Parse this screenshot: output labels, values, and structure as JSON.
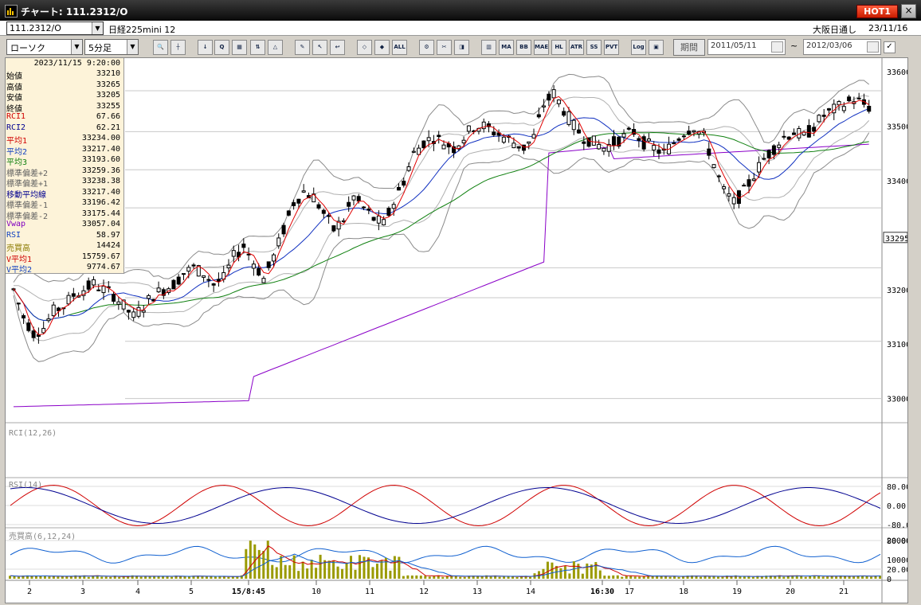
{
  "window": {
    "title": "チャート: 111.2312/O",
    "hot_label": "HOT1",
    "close_label": "×"
  },
  "header": {
    "symbol": "111.2312/O",
    "product": "日経225mini 12",
    "session": "大阪日通し",
    "date": "23/11/16"
  },
  "toolbar": {
    "chart_type": "ローソク",
    "interval": "5分足",
    "period_label": "期間",
    "date_from": "2011/05/11",
    "date_to": "2012/03/06",
    "tilde": "~",
    "buttons": [
      {
        "name": "zoom-icon",
        "label": "🔍"
      },
      {
        "name": "crosshair-icon",
        "label": "┼"
      },
      {
        "name": "cursor-icon",
        "label": "↓"
      },
      {
        "name": "magnify-icon",
        "label": "Q"
      },
      {
        "name": "chart-icon",
        "label": "▦"
      },
      {
        "name": "split-icon",
        "label": "⇅"
      },
      {
        "name": "warning-icon",
        "label": "△"
      },
      {
        "name": "pen-icon",
        "label": "✎"
      },
      {
        "name": "arrow-icon",
        "label": "↖"
      },
      {
        "name": "undo-icon",
        "label": "↩"
      },
      {
        "name": "candle-a-icon",
        "label": "◇"
      },
      {
        "name": "candle-b-icon",
        "label": "◆"
      },
      {
        "name": "all-button",
        "label": "ALL"
      },
      {
        "name": "settings-icon",
        "label": "⚙"
      },
      {
        "name": "tools-icon",
        "label": "✂"
      },
      {
        "name": "color-icon",
        "label": "◨"
      },
      {
        "name": "volume-bars-icon",
        "label": "▥"
      },
      {
        "name": "ma-button",
        "label": "MA"
      },
      {
        "name": "bb-button",
        "label": "BB"
      },
      {
        "name": "mae-button",
        "label": "MAE"
      },
      {
        "name": "hl-button",
        "label": "HL"
      },
      {
        "name": "atr-button",
        "label": "ATR"
      },
      {
        "name": "ss-button",
        "label": "SS"
      },
      {
        "name": "pvt-button",
        "label": "PVT"
      },
      {
        "name": "log-button",
        "label": "Log"
      },
      {
        "name": "layout-icon",
        "label": "▣"
      }
    ]
  },
  "info_panel": {
    "timestamp": "2023/11/15  9:20:00",
    "rows": [
      {
        "label": "始値",
        "value": "33210",
        "color": "#000000"
      },
      {
        "label": "高値",
        "value": "33265",
        "color": "#000000"
      },
      {
        "label": "安値",
        "value": "33205",
        "color": "#000000"
      },
      {
        "label": "終値",
        "value": "33255",
        "color": "#000000"
      },
      {
        "label": "RCI1",
        "value": "67.66",
        "color": "#d00000"
      },
      {
        "label": "RCI2",
        "value": "62.21",
        "color": "#000090"
      },
      {
        "label": "平均1",
        "value": "33234.00",
        "color": "#d00000"
      },
      {
        "label": "平均2",
        "value": "33217.40",
        "color": "#1040c0"
      },
      {
        "label": "平均3",
        "value": "33193.60",
        "color": "#108010"
      },
      {
        "label": "標準偏差+2",
        "value": "33259.36",
        "color": "#606060"
      },
      {
        "label": "標準偏差+1",
        "value": "33238.38",
        "color": "#606060"
      },
      {
        "label": "移動平均線",
        "value": "33217.40",
        "color": "#000090"
      },
      {
        "label": "標準偏差-1",
        "value": "33196.42",
        "color": "#606060"
      },
      {
        "label": "標準偏差-2",
        "value": "33175.44",
        "color": "#606060"
      },
      {
        "label": "Vwap",
        "value": "33057.04",
        "color": "#8000c0"
      },
      {
        "label": "RSI",
        "value": "58.97",
        "color": "#1040c0"
      },
      {
        "label": "売買高",
        "value": "14424",
        "color": "#8a7a00"
      },
      {
        "label": "V平均1",
        "value": "15759.67",
        "color": "#d00000"
      },
      {
        "label": "V平均2",
        "value": "9774.67",
        "color": "#1040c0"
      }
    ]
  },
  "chart_data": {
    "type": "line",
    "price_axis": {
      "ticks": [
        33600,
        33500,
        33400,
        33300,
        33200,
        33100,
        33000
      ],
      "current": "33295",
      "range": [
        32960,
        33625
      ]
    },
    "time_axis": [
      {
        "label": "2",
        "bold": false
      },
      {
        "label": "3",
        "bold": false
      },
      {
        "label": "4",
        "bold": false
      },
      {
        "label": "5",
        "bold": false
      },
      {
        "label": "15/8:45",
        "bold": true
      },
      {
        "label": "10",
        "bold": false
      },
      {
        "label": "11",
        "bold": false
      },
      {
        "label": "12",
        "bold": false
      },
      {
        "label": "13",
        "bold": false
      },
      {
        "label": "14",
        "bold": false
      },
      {
        "label": "16:30",
        "bold": true
      },
      {
        "label": "17",
        "bold": false
      },
      {
        "label": "18",
        "bold": false
      },
      {
        "label": "19",
        "bold": false
      },
      {
        "label": "20",
        "bold": false
      },
      {
        "label": "21",
        "bold": false
      }
    ],
    "close_path": [
      33200,
      33150,
      33120,
      33130,
      33160,
      33170,
      33190,
      33200,
      33210,
      33200,
      33190,
      33170,
      33150,
      33170,
      33190,
      33200,
      33210,
      33230,
      33240,
      33230,
      33210,
      33220,
      33260,
      33280,
      33250,
      33220,
      33260,
      33310,
      33360,
      33380,
      33370,
      33340,
      33310,
      33330,
      33370,
      33350,
      33330,
      33320,
      33360,
      33400,
      33450,
      33470,
      33480,
      33470,
      33460,
      33480,
      33500,
      33500,
      33490,
      33480,
      33470,
      33460,
      33480,
      33540,
      33560,
      33530,
      33500,
      33480,
      33470,
      33460,
      33470,
      33480,
      33490,
      33470,
      33460,
      33450,
      33470,
      33490,
      33500,
      33480,
      33430,
      33380,
      33360,
      33380,
      33410,
      33440,
      33460,
      33480,
      33490,
      33480,
      33500,
      33520,
      33530,
      33540,
      33550,
      33540,
      33530
    ],
    "subcharts": [
      {
        "label": "RCI(12,26)",
        "ticks": [
          "80.00",
          "0.00",
          "-80.00"
        ]
      },
      {
        "label": "RSI(14)",
        "ticks": [
          "80.00",
          "20.00"
        ]
      },
      {
        "label": "売買高(6,12,24)",
        "ticks": [
          "20000",
          "10000",
          "0"
        ]
      }
    ]
  }
}
